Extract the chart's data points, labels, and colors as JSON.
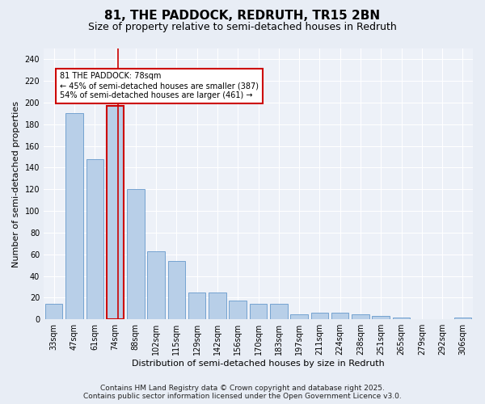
{
  "title": "81, THE PADDOCK, REDRUTH, TR15 2BN",
  "subtitle": "Size of property relative to semi-detached houses in Redruth",
  "xlabel": "Distribution of semi-detached houses by size in Redruth",
  "ylabel": "Number of semi-detached properties",
  "categories": [
    "33sqm",
    "47sqm",
    "61sqm",
    "74sqm",
    "88sqm",
    "102sqm",
    "115sqm",
    "129sqm",
    "142sqm",
    "156sqm",
    "170sqm",
    "183sqm",
    "197sqm",
    "211sqm",
    "224sqm",
    "238sqm",
    "251sqm",
    "265sqm",
    "279sqm",
    "292sqm",
    "306sqm"
  ],
  "values": [
    14,
    190,
    148,
    197,
    120,
    63,
    54,
    25,
    25,
    17,
    14,
    14,
    5,
    6,
    6,
    5,
    3,
    2,
    0,
    0,
    2
  ],
  "bar_color": "#b8cfe8",
  "bar_edge_color": "#6699cc",
  "highlight_bar_edge_color": "#cc0000",
  "vline_color": "#cc0000",
  "annotation_text": "81 THE PADDOCK: 78sqm\n← 45% of semi-detached houses are smaller (387)\n54% of semi-detached houses are larger (461) →",
  "annotation_box_color": "#ffffff",
  "annotation_box_edge_color": "#cc0000",
  "ylim": [
    0,
    250
  ],
  "yticks": [
    0,
    20,
    40,
    60,
    80,
    100,
    120,
    140,
    160,
    180,
    200,
    220,
    240
  ],
  "footer_line1": "Contains HM Land Registry data © Crown copyright and database right 2025.",
  "footer_line2": "Contains public sector information licensed under the Open Government Licence v3.0.",
  "bg_color": "#e8edf5",
  "plot_bg_color": "#edf1f8",
  "grid_color": "#ffffff",
  "title_fontsize": 11,
  "subtitle_fontsize": 9,
  "axis_label_fontsize": 8,
  "tick_fontsize": 7,
  "annotation_fontsize": 7,
  "footer_fontsize": 6.5
}
